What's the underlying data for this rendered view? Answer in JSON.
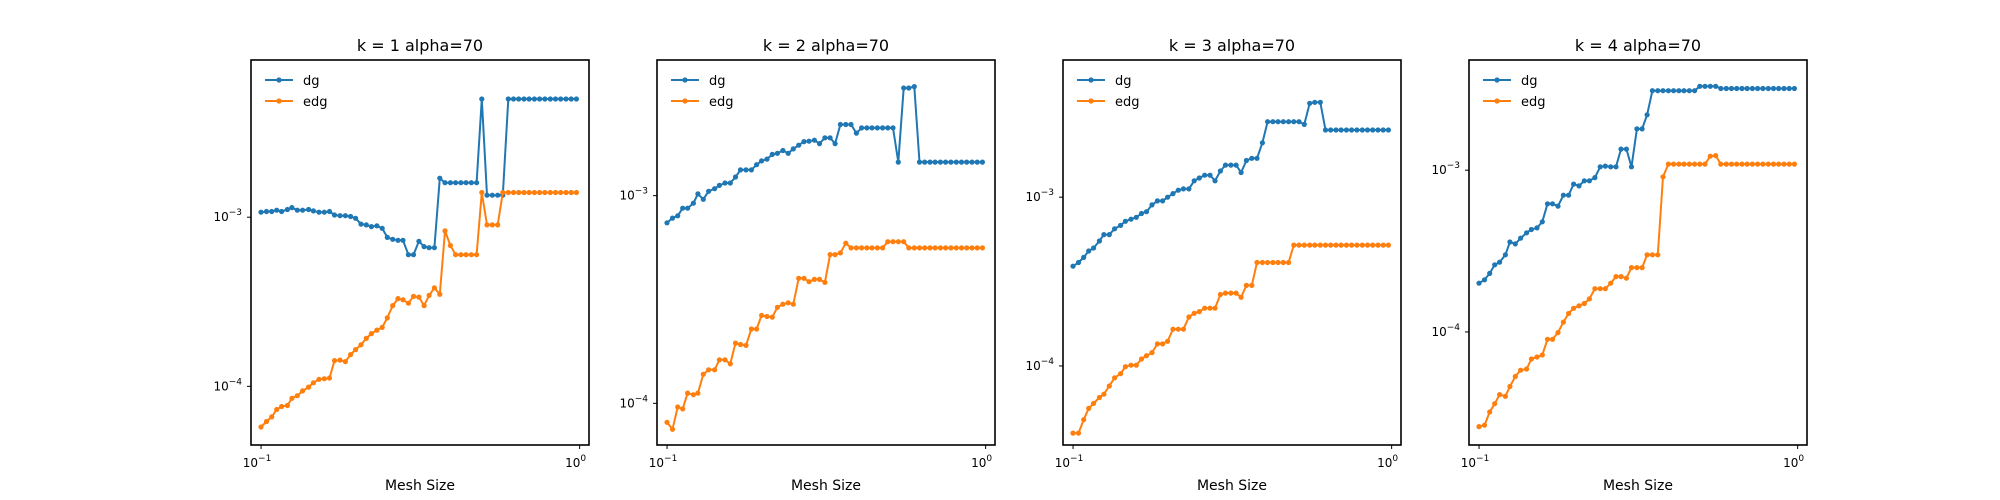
{
  "chart_data": [
    {
      "type": "line",
      "title": "k = 1 alpha=70",
      "xlabel": "Mesh Size",
      "ylabel": "",
      "xscale": "log",
      "yscale": "log",
      "xlim": [
        0.093,
        1.07
      ],
      "ylim": [
        4.5e-05,
        0.0085
      ],
      "xticks": [
        {
          "value": 0.1,
          "base": "10",
          "exp": "−1"
        },
        {
          "value": 1.0,
          "base": "10",
          "exp": "0"
        }
      ],
      "yticks": [
        {
          "value": 0.0001,
          "base": "10",
          "exp": "−4"
        },
        {
          "value": 0.001,
          "base": "10",
          "exp": "−3"
        }
      ],
      "legend": {
        "location": "upper-left",
        "entries": [
          "dg",
          "edg"
        ]
      },
      "x": [
        0.1,
        0.104,
        0.108,
        0.112,
        0.116,
        0.121,
        0.125,
        0.13,
        0.135,
        0.141,
        0.146,
        0.152,
        0.158,
        0.164,
        0.17,
        0.177,
        0.184,
        0.191,
        0.198,
        0.206,
        0.214,
        0.222,
        0.231,
        0.24,
        0.249,
        0.259,
        0.269,
        0.279,
        0.29,
        0.301,
        0.313,
        0.325,
        0.337,
        0.35,
        0.364,
        0.378,
        0.393,
        0.408,
        0.424,
        0.44,
        0.457,
        0.475,
        0.493,
        0.512,
        0.532,
        0.553,
        0.574,
        0.597,
        0.62,
        0.644,
        0.669,
        0.694,
        0.721,
        0.749,
        0.778,
        0.809,
        0.84,
        0.872,
        0.906,
        0.941,
        0.977
      ],
      "series": [
        {
          "name": "dg",
          "color": "#1f77b4",
          "values": [
            0.00107,
            0.00108,
            0.00108,
            0.0011,
            0.00108,
            0.00111,
            0.00114,
            0.0011,
            0.0011,
            0.00111,
            0.00109,
            0.00107,
            0.00107,
            0.00108,
            0.00103,
            0.00102,
            0.00102,
            0.00101,
            0.000985,
            0.00091,
            0.0009,
            0.00088,
            0.00089,
            0.00086,
            0.00076,
            0.00074,
            0.00073,
            0.00073,
            0.0006,
            0.0006,
            0.00072,
            0.00067,
            0.00066,
            0.00066,
            0.0017,
            0.0016,
            0.0016,
            0.0016,
            0.0016,
            0.0016,
            0.0016,
            0.0016,
            0.005,
            0.00135,
            0.00135,
            0.00135,
            0.00135,
            0.005,
            0.005,
            0.005,
            0.005,
            0.005,
            0.005,
            0.005,
            0.005,
            0.005,
            0.005,
            0.005,
            0.005,
            0.005,
            0.005
          ]
        },
        {
          "name": "edg",
          "color": "#ff7f0e",
          "values": [
            5.75e-05,
            6.2e-05,
            6.6e-05,
            7.3e-05,
            7.6e-05,
            7.7e-05,
            8.5e-05,
            8.8e-05,
            9.4e-05,
            9.9e-05,
            0.000105,
            0.00011,
            0.000111,
            0.000112,
            0.000142,
            0.000143,
            0.00014,
            0.000154,
            0.000165,
            0.000176,
            0.000192,
            0.000205,
            0.000215,
            0.000223,
            0.000254,
            0.0003,
            0.00033,
            0.000325,
            0.00031,
            0.00034,
            0.000337,
            0.0003,
            0.000345,
            0.000382,
            0.00035,
            0.00083,
            0.00068,
            0.0006,
            0.0006,
            0.0006,
            0.0006,
            0.0006,
            0.0014,
            0.0009,
            0.0009,
            0.0009,
            0.0014,
            0.0014,
            0.0014,
            0.0014,
            0.0014,
            0.0014,
            0.0014,
            0.0014,
            0.0014,
            0.0014,
            0.0014,
            0.0014,
            0.0014,
            0.0014,
            0.0014
          ]
        }
      ]
    },
    {
      "type": "line",
      "title": "k = 2 alpha=70",
      "xlabel": "Mesh Size",
      "ylabel": "",
      "xscale": "log",
      "yscale": "log",
      "xlim": [
        0.093,
        1.07
      ],
      "ylim": [
        6.3e-05,
        0.0045
      ],
      "xticks": [
        {
          "value": 0.1,
          "base": "10",
          "exp": "−1"
        },
        {
          "value": 1.0,
          "base": "10",
          "exp": "0"
        }
      ],
      "yticks": [
        {
          "value": 0.0001,
          "base": "10",
          "exp": "−4"
        },
        {
          "value": 0.001,
          "base": "10",
          "exp": "−3"
        }
      ],
      "legend": {
        "location": "upper-left",
        "entries": [
          "dg",
          "edg"
        ]
      },
      "x": [
        0.1,
        0.104,
        0.108,
        0.112,
        0.116,
        0.121,
        0.125,
        0.13,
        0.135,
        0.141,
        0.146,
        0.152,
        0.158,
        0.164,
        0.17,
        0.177,
        0.184,
        0.191,
        0.198,
        0.206,
        0.214,
        0.222,
        0.231,
        0.24,
        0.249,
        0.259,
        0.269,
        0.279,
        0.29,
        0.301,
        0.313,
        0.325,
        0.337,
        0.35,
        0.364,
        0.378,
        0.393,
        0.408,
        0.424,
        0.44,
        0.457,
        0.475,
        0.493,
        0.512,
        0.532,
        0.553,
        0.574,
        0.597,
        0.62,
        0.644,
        0.669,
        0.694,
        0.721,
        0.749,
        0.778,
        0.809,
        0.84,
        0.872,
        0.906,
        0.941,
        0.977
      ],
      "series": [
        {
          "name": "dg",
          "color": "#1f77b4",
          "values": [
            0.00074,
            0.00078,
            0.0008,
            0.00087,
            0.00087,
            0.00092,
            0.00102,
            0.00096,
            0.00105,
            0.00108,
            0.00112,
            0.00115,
            0.00115,
            0.00123,
            0.00133,
            0.00133,
            0.00133,
            0.00141,
            0.00147,
            0.0015,
            0.00158,
            0.0016,
            0.00165,
            0.0016,
            0.00168,
            0.00175,
            0.00182,
            0.00183,
            0.00185,
            0.00178,
            0.0019,
            0.0019,
            0.00178,
            0.0022,
            0.0022,
            0.0022,
            0.002,
            0.00212,
            0.00212,
            0.00212,
            0.00212,
            0.00212,
            0.00212,
            0.00212,
            0.00145,
            0.0033,
            0.0033,
            0.00335,
            0.00145,
            0.00145,
            0.00145,
            0.00145,
            0.00145,
            0.00145,
            0.00145,
            0.00145,
            0.00145,
            0.00145,
            0.00145,
            0.00145,
            0.00145
          ]
        },
        {
          "name": "edg",
          "color": "#ff7f0e",
          "values": [
            8.1e-05,
            7.5e-05,
            9.6e-05,
            9.4e-05,
            0.000112,
            0.00011,
            0.000112,
            0.000138,
            0.000145,
            0.000145,
            0.000162,
            0.000162,
            0.000155,
            0.000195,
            0.000192,
            0.00019,
            0.000228,
            0.000228,
            0.000265,
            0.000262,
            0.00026,
            0.00029,
            0.0003,
            0.000305,
            0.0003,
            0.0004,
            0.0004,
            0.000385,
            0.000395,
            0.000395,
            0.000382,
            0.00052,
            0.00052,
            0.00053,
            0.00059,
            0.00056,
            0.00056,
            0.00056,
            0.00056,
            0.00056,
            0.00056,
            0.00056,
            0.0006,
            0.0006,
            0.0006,
            0.0006,
            0.00056,
            0.00056,
            0.00056,
            0.00056,
            0.00056,
            0.00056,
            0.00056,
            0.00056,
            0.00056,
            0.00056,
            0.00056,
            0.00056,
            0.00056,
            0.00056,
            0.00056
          ]
        }
      ]
    },
    {
      "type": "line",
      "title": "k = 3 alpha=70",
      "xlabel": "Mesh Size",
      "ylabel": "",
      "xscale": "log",
      "yscale": "log",
      "xlim": [
        0.093,
        1.07
      ],
      "ylim": [
        3.4e-05,
        0.0065
      ],
      "xticks": [
        {
          "value": 0.1,
          "base": "10",
          "exp": "−1"
        },
        {
          "value": 1.0,
          "base": "10",
          "exp": "0"
        }
      ],
      "yticks": [
        {
          "value": 0.0001,
          "base": "10",
          "exp": "−4"
        },
        {
          "value": 0.001,
          "base": "10",
          "exp": "−3"
        }
      ],
      "legend": {
        "location": "upper-left",
        "entries": [
          "dg",
          "edg"
        ]
      },
      "x": [
        0.1,
        0.104,
        0.108,
        0.112,
        0.116,
        0.121,
        0.125,
        0.13,
        0.135,
        0.141,
        0.146,
        0.152,
        0.158,
        0.164,
        0.17,
        0.177,
        0.184,
        0.191,
        0.198,
        0.206,
        0.214,
        0.222,
        0.231,
        0.24,
        0.249,
        0.259,
        0.269,
        0.279,
        0.29,
        0.301,
        0.313,
        0.325,
        0.337,
        0.35,
        0.364,
        0.378,
        0.393,
        0.408,
        0.424,
        0.44,
        0.457,
        0.475,
        0.493,
        0.512,
        0.532,
        0.553,
        0.574,
        0.597,
        0.62,
        0.644,
        0.669,
        0.694,
        0.721,
        0.749,
        0.778,
        0.809,
        0.84,
        0.872,
        0.906,
        0.941,
        0.977
      ],
      "series": [
        {
          "name": "dg",
          "color": "#1f77b4",
          "values": [
            0.00039,
            0.00041,
            0.00044,
            0.00048,
            0.0005,
            0.00055,
            0.0006,
            0.0006,
            0.00065,
            0.00068,
            0.00072,
            0.00074,
            0.00076,
            0.0008,
            0.00082,
            0.0009,
            0.00095,
            0.00095,
            0.001,
            0.00105,
            0.0011,
            0.00112,
            0.00112,
            0.00125,
            0.0013,
            0.00135,
            0.00135,
            0.00125,
            0.00143,
            0.00155,
            0.00155,
            0.00155,
            0.0014,
            0.00165,
            0.0017,
            0.0017,
            0.0021,
            0.0028,
            0.0028,
            0.0028,
            0.0028,
            0.0028,
            0.0028,
            0.0028,
            0.0027,
            0.0036,
            0.00365,
            0.00365,
            0.0025,
            0.0025,
            0.0025,
            0.0025,
            0.0025,
            0.0025,
            0.0025,
            0.0025,
            0.0025,
            0.0025,
            0.0025,
            0.0025,
            0.0025
          ]
        },
        {
          "name": "edg",
          "color": "#ff7f0e",
          "values": [
            4e-05,
            4e-05,
            4.8e-05,
            5.6e-05,
            6e-05,
            6.5e-05,
            6.8e-05,
            7.6e-05,
            8.5e-05,
            9e-05,
            9.9e-05,
            0.000101,
            0.000101,
            0.00011,
            0.000115,
            0.00012,
            0.000135,
            0.000135,
            0.00014,
            0.000165,
            0.000165,
            0.000165,
            0.000195,
            0.000205,
            0.00021,
            0.00022,
            0.00022,
            0.00022,
            0.000265,
            0.00027,
            0.00027,
            0.00027,
            0.000255,
            0.0003,
            0.0003,
            0.00041,
            0.00041,
            0.00041,
            0.00041,
            0.00041,
            0.00041,
            0.00041,
            0.00052,
            0.00052,
            0.00052,
            0.00052,
            0.00052,
            0.00052,
            0.00052,
            0.00052,
            0.00052,
            0.00052,
            0.00052,
            0.00052,
            0.00052,
            0.00052,
            0.00052,
            0.00052,
            0.00052,
            0.00052,
            0.00052
          ]
        }
      ]
    },
    {
      "type": "line",
      "title": "k = 4 alpha=70",
      "xlabel": "Mesh Size",
      "ylabel": "",
      "xscale": "log",
      "yscale": "log",
      "xlim": [
        0.093,
        1.07
      ],
      "ylim": [
        2e-05,
        0.0048
      ],
      "xticks": [
        {
          "value": 0.1,
          "base": "10",
          "exp": "−1"
        },
        {
          "value": 1.0,
          "base": "10",
          "exp": "0"
        }
      ],
      "yticks": [
        {
          "value": 0.0001,
          "base": "10",
          "exp": "−4"
        },
        {
          "value": 0.001,
          "base": "10",
          "exp": "−3"
        }
      ],
      "legend": {
        "location": "upper-left",
        "entries": [
          "dg",
          "edg"
        ]
      },
      "x": [
        0.1,
        0.104,
        0.108,
        0.112,
        0.116,
        0.121,
        0.125,
        0.13,
        0.135,
        0.141,
        0.146,
        0.152,
        0.158,
        0.164,
        0.17,
        0.177,
        0.184,
        0.191,
        0.198,
        0.206,
        0.214,
        0.222,
        0.231,
        0.24,
        0.249,
        0.259,
        0.269,
        0.279,
        0.29,
        0.301,
        0.313,
        0.325,
        0.337,
        0.35,
        0.364,
        0.378,
        0.393,
        0.408,
        0.424,
        0.44,
        0.457,
        0.475,
        0.493,
        0.512,
        0.532,
        0.553,
        0.574,
        0.597,
        0.62,
        0.644,
        0.669,
        0.694,
        0.721,
        0.749,
        0.778,
        0.809,
        0.84,
        0.872,
        0.906,
        0.941,
        0.977
      ],
      "series": [
        {
          "name": "dg",
          "color": "#1f77b4",
          "values": [
            0.0002,
            0.00021,
            0.00023,
            0.00026,
            0.00027,
            0.0003,
            0.00036,
            0.00035,
            0.00038,
            0.00041,
            0.00043,
            0.00044,
            0.00048,
            0.00062,
            0.00062,
            0.0006,
            0.0007,
            0.0007,
            0.00082,
            0.0008,
            0.00086,
            0.00086,
            0.0009,
            0.00105,
            0.00106,
            0.00105,
            0.00105,
            0.00135,
            0.00135,
            0.00105,
            0.0018,
            0.0018,
            0.0022,
            0.0031,
            0.0031,
            0.0031,
            0.0031,
            0.0031,
            0.0031,
            0.0031,
            0.0031,
            0.0031,
            0.0033,
            0.0033,
            0.0033,
            0.0033,
            0.0032,
            0.0032,
            0.0032,
            0.0032,
            0.0032,
            0.0032,
            0.0032,
            0.0032,
            0.0032,
            0.0032,
            0.0032,
            0.0032,
            0.0032,
            0.0032,
            0.0032
          ]
        },
        {
          "name": "edg",
          "color": "#ff7f0e",
          "values": [
            2.6e-05,
            2.65e-05,
            3.2e-05,
            3.6e-05,
            4.1e-05,
            4e-05,
            4.6e-05,
            5.3e-05,
            5.8e-05,
            5.9e-05,
            6.8e-05,
            7e-05,
            7.2e-05,
            9e-05,
            9e-05,
            9.9e-05,
            0.000115,
            0.00013,
            0.00014,
            0.000145,
            0.00015,
            0.00016,
            0.000185,
            0.000185,
            0.000185,
            0.0002,
            0.00022,
            0.00022,
            0.000215,
            0.00025,
            0.00025,
            0.00025,
            0.0003,
            0.0003,
            0.0003,
            0.00091,
            0.00109,
            0.00109,
            0.00109,
            0.00109,
            0.00109,
            0.00109,
            0.00109,
            0.00109,
            0.00122,
            0.00123,
            0.00109,
            0.00109,
            0.00109,
            0.00109,
            0.00109,
            0.00109,
            0.00109,
            0.00109,
            0.00109,
            0.00109,
            0.00109,
            0.00109,
            0.00109,
            0.00109,
            0.00109
          ]
        }
      ]
    }
  ]
}
